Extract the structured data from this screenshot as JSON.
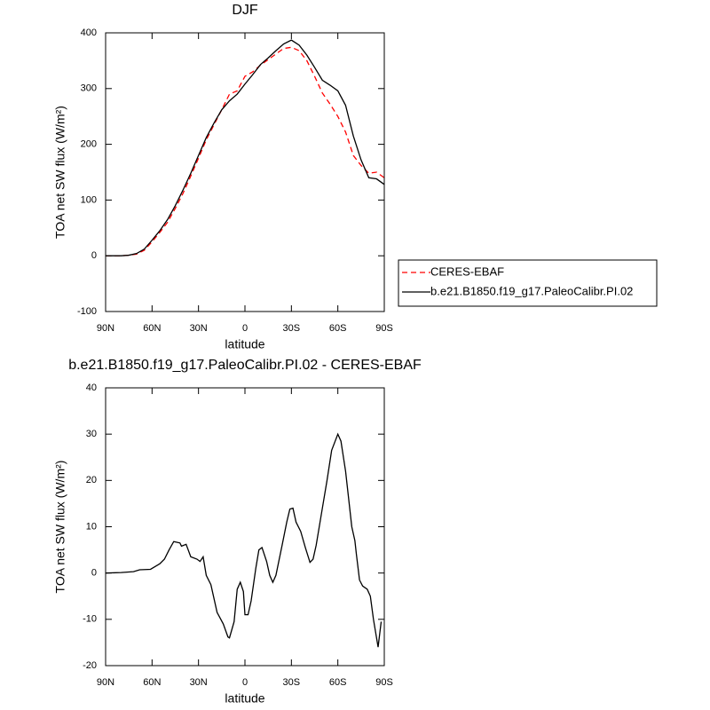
{
  "chart_data": [
    {
      "type": "line",
      "title": "DJF",
      "xlabel": "latitude",
      "ylabel": "TOA net SW flux (W/m²)",
      "x": [
        90,
        85,
        80,
        75,
        70,
        65,
        60,
        55,
        50,
        45,
        40,
        35,
        30,
        25,
        20,
        15,
        10,
        5,
        0,
        -5,
        -10,
        -15,
        -20,
        -25,
        -30,
        -35,
        -40,
        -45,
        -50,
        -55,
        -60,
        -65,
        -70,
        -75,
        -80,
        -85,
        -90
      ],
      "series": [
        {
          "name": "CERES-EBAF",
          "color": "#ff0000",
          "style": "dashed",
          "values": [
            0,
            0,
            0,
            1,
            3,
            10,
            25,
            42,
            60,
            85,
            112,
            143,
            175,
            208,
            235,
            262,
            290,
            296,
            322,
            330,
            342,
            352,
            362,
            372,
            374,
            368,
            350,
            322,
            292,
            272,
            250,
            222,
            180,
            162,
            148,
            150,
            140
          ]
        },
        {
          "name": "b.e21.B1850.f19_g17.PaleoCalibr.PI.02",
          "color": "#000000",
          "style": "solid",
          "values": [
            0,
            0,
            0,
            1,
            4,
            12,
            28,
            45,
            65,
            90,
            118,
            148,
            180,
            212,
            238,
            262,
            278,
            290,
            308,
            325,
            343,
            355,
            368,
            380,
            387,
            378,
            360,
            338,
            315,
            306,
            296,
            270,
            215,
            172,
            140,
            138,
            128
          ]
        }
      ],
      "xlim": [
        90,
        -90
      ],
      "xticks": [
        {
          "value": 90,
          "label": "90N"
        },
        {
          "value": 60,
          "label": "60N"
        },
        {
          "value": 30,
          "label": "30N"
        },
        0,
        {
          "value": -30,
          "label": "30S"
        },
        {
          "value": -60,
          "label": "60S"
        },
        {
          "value": -90,
          "label": "90S"
        }
      ],
      "ylim": [
        -100,
        400
      ],
      "yticks": [
        -100,
        0,
        100,
        200,
        300,
        400
      ],
      "legend": "right"
    },
    {
      "type": "line",
      "title": "b.e21.B1850.f19_g17.PaleoCalibr.PI.02 - CERES-EBAF",
      "xlabel": "latitude",
      "ylabel": "TOA net SW flux (W/m²)",
      "x": [
        90,
        80,
        72,
        68,
        61,
        55,
        52,
        49,
        46,
        42,
        41,
        38,
        35,
        31,
        29,
        27,
        25,
        22,
        18,
        14,
        11,
        10,
        7,
        5,
        3,
        1,
        0,
        -2,
        -4,
        -7,
        -9,
        -11,
        -14,
        -16,
        -18,
        -20,
        -24,
        -27,
        -29,
        -31,
        -33,
        -36,
        -39,
        -42,
        -44,
        -46,
        -49,
        -53,
        -56,
        -60,
        -62,
        -65,
        -69,
        -71,
        -72,
        -74,
        -76,
        -79,
        -81,
        -83,
        -86,
        -88
      ],
      "series": [
        {
          "color": "#000000",
          "style": "solid",
          "values": [
            0,
            0.1,
            0.3,
            0.7,
            0.8,
            2,
            3,
            5,
            6.8,
            6.5,
            5.8,
            6.2,
            3.5,
            3,
            2.5,
            3.5,
            -0.5,
            -2.5,
            -8.5,
            -11,
            -13.8,
            -14,
            -10.5,
            -3.5,
            -2,
            -4,
            -9,
            -9,
            -6,
            1,
            5,
            5.5,
            2.5,
            -0.5,
            -2,
            -0.5,
            6,
            11,
            13.8,
            14,
            11,
            9,
            5.5,
            2.3,
            3,
            6,
            12,
            20,
            26.5,
            30,
            28.5,
            22,
            10,
            7,
            4,
            -1.5,
            -2.8,
            -3.5,
            -5,
            -10,
            -16,
            -10.5
          ]
        }
      ],
      "xlim": [
        90,
        -90
      ],
      "xticks": [
        {
          "value": 90,
          "label": "90N"
        },
        {
          "value": 60,
          "label": "60N"
        },
        {
          "value": 30,
          "label": "30N"
        },
        0,
        {
          "value": -30,
          "label": "30S"
        },
        {
          "value": -60,
          "label": "60S"
        },
        {
          "value": -90,
          "label": "90S"
        }
      ],
      "ylim": [
        -20,
        40
      ],
      "yticks": [
        -20,
        -10,
        0,
        10,
        20,
        30,
        40
      ]
    }
  ]
}
